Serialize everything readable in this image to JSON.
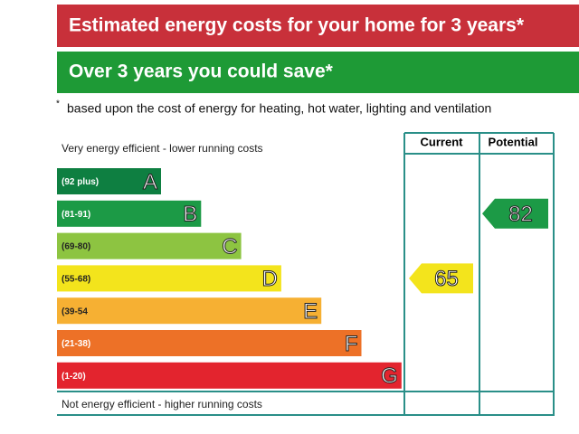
{
  "header": {
    "title": "Estimated energy costs for your home for 3 years*",
    "savings": "Over 3 years you could save*",
    "footnote_mark": "*",
    "footnote": "based upon the cost of energy for heating, hot water, lighting and ventilation"
  },
  "rating": {
    "top_label": "Very energy efficient - lower running costs",
    "bottom_label": "Not energy efficient - higher running costs",
    "columns": [
      "Current",
      "Potential"
    ],
    "bands": [
      {
        "range": "(92 plus)",
        "letter": "A",
        "color": "#0e7f41"
      },
      {
        "range": "(81-91)",
        "letter": "B",
        "color": "#1c9a46"
      },
      {
        "range": "(69-80)",
        "letter": "C",
        "color": "#8dc441"
      },
      {
        "range": "(55-68)",
        "letter": "D",
        "color": "#f3e41c"
      },
      {
        "range": "(39-54",
        "letter": "E",
        "color": "#f6b033"
      },
      {
        "range": "(21-38)",
        "letter": "F",
        "color": "#ed7127"
      },
      {
        "range": "(1-20)",
        "letter": "G",
        "color": "#e3242e"
      }
    ],
    "current": 65,
    "current_color": "#f3e41c",
    "potential": 82,
    "potential_color": "#1c9a46"
  }
}
